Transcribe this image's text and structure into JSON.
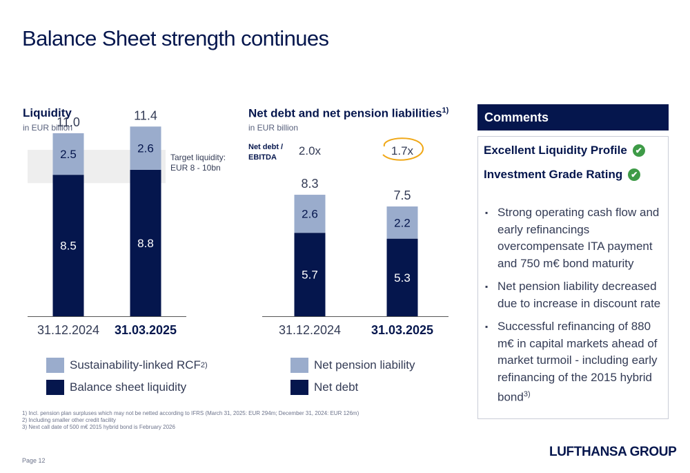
{
  "page_title": "Balance Sheet strength continues",
  "colors": {
    "navy": "#05164d",
    "light_blue": "#9aaccc",
    "target_band": "#eeeeee",
    "check_green": "#3e9b47"
  },
  "liquidity": {
    "title": "Liquidity",
    "subtitle": "in EUR billion",
    "target_label_line1": "Target liquidity:",
    "target_label_line2": "EUR 8 - 10bn",
    "legend_rcf": "Sustainability-linked RCF",
    "legend_rcf_note": "2)",
    "legend_bsl": "Balance sheet liquidity"
  },
  "net_debt": {
    "title": "Net debt and net pension liabilities",
    "title_note": "1)",
    "subtitle": "in EUR billion",
    "ebitda_label_line1": "Net debt /",
    "ebitda_label_line2": "EBITDA",
    "legend_pension": "Net pension liability",
    "legend_debt": "Net debt"
  },
  "chart_data": [
    {
      "type": "bar",
      "stacked": true,
      "title": "Liquidity",
      "ylabel": "in EUR billion",
      "categories": [
        "31.12.2024",
        "31.03.2025"
      ],
      "category_bold": [
        false,
        true
      ],
      "series": [
        {
          "name": "Balance sheet liquidity",
          "values": [
            8.5,
            8.8
          ],
          "labels": [
            "8.5",
            "8.8"
          ]
        },
        {
          "name": "Sustainability-linked RCF",
          "values": [
            2.5,
            2.6
          ],
          "labels": [
            "2.5",
            "2.6"
          ]
        }
      ],
      "totals": [
        "11.0",
        "11.4"
      ],
      "target_band": [
        8,
        10
      ],
      "ylim": [
        0,
        12.5
      ]
    },
    {
      "type": "bar",
      "stacked": true,
      "title": "Net debt and net pension liabilities",
      "ylabel": "in EUR billion",
      "categories": [
        "31.12.2024",
        "31.03.2025"
      ],
      "category_bold": [
        false,
        true
      ],
      "series": [
        {
          "name": "Net debt",
          "values": [
            5.7,
            5.3
          ],
          "labels": [
            "5.7",
            "5.3"
          ]
        },
        {
          "name": "Net pension liability",
          "values": [
            2.6,
            2.2
          ],
          "labels": [
            "2.6",
            "2.2"
          ]
        }
      ],
      "totals": [
        "8.3",
        "7.5"
      ],
      "net_debt_ebitda": [
        "2.0x",
        "1.7x"
      ],
      "highlighted": 1,
      "ylim": [
        0,
        10.2
      ]
    }
  ],
  "comments": {
    "header": "Comments",
    "check1": "Excellent Liquidity Profile",
    "check2": "Investment Grade Rating",
    "bullet1": "Strong operating cash flow and early refinancings overcompensate ITA payment and 750 m€ bond maturity",
    "bullet2": "Net pension liability decreased due to increase in discount rate",
    "bullet3": "Successful refinancing of 880 m€ in capital markets ahead of market turmoil - including early refinancing of the 2015 hybrid bond",
    "bullet3_note": "3)"
  },
  "footnotes": [
    "1) Incl. pension plan surpluses which may not be netted according to IFRS (March 31, 2025: EUR 294m; December 31, 2024: EUR 126m)",
    "2) Including smaller other credit facility",
    "3) Next call date of 500 m€ 2015 hybrid bond is February 2026"
  ],
  "page_number": "Page 12",
  "logo": "LUFTHANSA GROUP"
}
